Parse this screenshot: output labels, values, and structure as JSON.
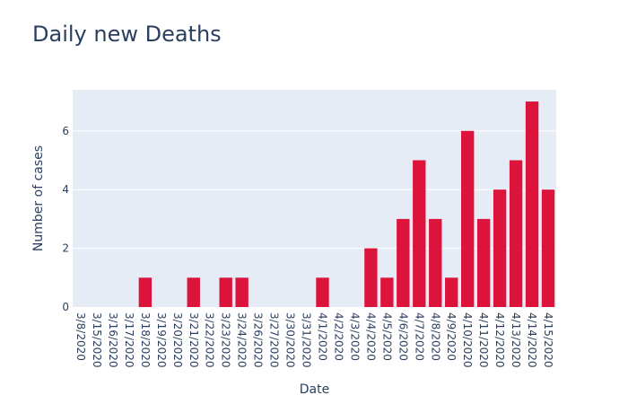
{
  "chart_data": {
    "type": "bar",
    "title": "Daily new Deaths",
    "xlabel": "Date",
    "ylabel": "Number of cases",
    "categories": [
      "3/8/2020",
      "3/15/2020",
      "3/16/2020",
      "3/17/2020",
      "3/18/2020",
      "3/19/2020",
      "3/20/2020",
      "3/21/2020",
      "3/22/2020",
      "3/23/2020",
      "3/24/2020",
      "3/26/2020",
      "3/27/2020",
      "3/30/2020",
      "3/31/2020",
      "4/1/2020",
      "4/2/2020",
      "4/3/2020",
      "4/4/2020",
      "4/5/2020",
      "4/6/2020",
      "4/7/2020",
      "4/8/2020",
      "4/9/2020",
      "4/10/2020",
      "4/11/2020",
      "4/12/2020",
      "4/13/2020",
      "4/14/2020",
      "4/15/2020"
    ],
    "values": [
      0,
      0,
      0,
      0,
      1,
      0,
      0,
      1,
      0,
      1,
      1,
      0,
      0,
      0,
      0,
      1,
      0,
      0,
      2,
      1,
      3,
      5,
      3,
      1,
      6,
      3,
      4,
      5,
      7,
      4
    ],
    "ylim": [
      0,
      7.4
    ],
    "yticks": [
      0,
      2,
      4,
      6
    ],
    "grid": true,
    "colors": {
      "bar": "#dc143c",
      "plot_bg": "#e5ecf6",
      "grid": "#ffffff",
      "text": "#2a3f5f"
    }
  }
}
